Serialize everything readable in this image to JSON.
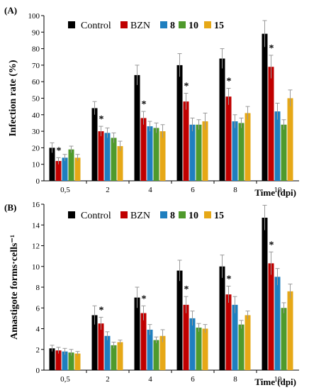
{
  "chart_data": [
    {
      "type": "bar",
      "panel_label": "(A)",
      "ylabel": "Infection rate (%)",
      "xlabel": "Time (dpi)",
      "ylim": [
        0,
        100
      ],
      "yticks": [
        "0",
        "10",
        "20",
        "30",
        "40",
        "50",
        "60",
        "70",
        "80",
        "90",
        "100"
      ],
      "categories": [
        "0,5",
        "2",
        "4",
        "6",
        "8",
        "10"
      ],
      "legend_position": "top",
      "series": [
        {
          "name": "Control",
          "color": "#000000",
          "values": [
            20,
            44,
            64,
            70,
            74,
            89
          ],
          "errors": [
            3,
            4,
            6,
            7,
            6,
            8
          ]
        },
        {
          "name": "BZN",
          "color": "#c00000",
          "values": [
            12,
            30,
            38,
            48,
            51,
            69
          ],
          "errors": [
            2,
            3,
            4,
            5,
            5,
            7
          ]
        },
        {
          "name": "8",
          "color": "#1f7fbf",
          "values": [
            14,
            29,
            33,
            34,
            36,
            42
          ],
          "errors": [
            2,
            3,
            3,
            4,
            4,
            5
          ]
        },
        {
          "name": "10",
          "color": "#4f9a2c",
          "values": [
            19,
            26,
            32,
            34,
            35,
            34
          ],
          "errors": [
            2,
            3,
            3,
            3,
            3,
            3
          ]
        },
        {
          "name": "15",
          "color": "#e6a817",
          "values": [
            14,
            21,
            30,
            36,
            41,
            50
          ],
          "errors": [
            2,
            3,
            4,
            5,
            4,
            5
          ]
        }
      ],
      "annotations": [
        "*",
        "*",
        "*",
        "*",
        "*",
        "*"
      ]
    },
    {
      "type": "bar",
      "panel_label": "(B)",
      "ylabel": "Amastigote forms·cells⁻¹",
      "xlabel": "Time (dpi)",
      "ylim": [
        0,
        16
      ],
      "yticks": [
        "0",
        "2",
        "4",
        "6",
        "8",
        "10",
        "12",
        "14",
        "16"
      ],
      "categories": [
        "0,5",
        "2",
        "4",
        "6",
        "8",
        "10"
      ],
      "legend_position": "top",
      "series": [
        {
          "name": "Control",
          "color": "#000000",
          "values": [
            2.1,
            5.3,
            7.0,
            9.6,
            10.0,
            14.7
          ],
          "errors": [
            0.3,
            0.9,
            1.0,
            1.0,
            1.1,
            1.2
          ]
        },
        {
          "name": "BZN",
          "color": "#c00000",
          "values": [
            1.9,
            4.5,
            5.5,
            6.3,
            7.3,
            10.3
          ],
          "errors": [
            0.3,
            0.6,
            0.7,
            0.8,
            0.8,
            1.1
          ]
        },
        {
          "name": "8",
          "color": "#1f7fbf",
          "values": [
            1.8,
            3.3,
            3.9,
            5.0,
            6.3,
            9.0
          ],
          "errors": [
            0.3,
            0.4,
            0.5,
            0.7,
            0.8,
            0.8
          ]
        },
        {
          "name": "10",
          "color": "#4f9a2c",
          "values": [
            1.7,
            2.4,
            2.9,
            4.1,
            4.4,
            6.0
          ],
          "errors": [
            0.3,
            0.3,
            0.3,
            0.4,
            0.4,
            0.5
          ]
        },
        {
          "name": "15",
          "color": "#e6a817",
          "values": [
            1.6,
            2.7,
            3.3,
            4.0,
            5.3,
            7.6
          ],
          "errors": [
            0.2,
            0.2,
            0.6,
            0.4,
            0.4,
            0.7
          ]
        }
      ],
      "annotations": [
        "",
        "*",
        "*",
        "*",
        "*",
        "*"
      ]
    }
  ]
}
